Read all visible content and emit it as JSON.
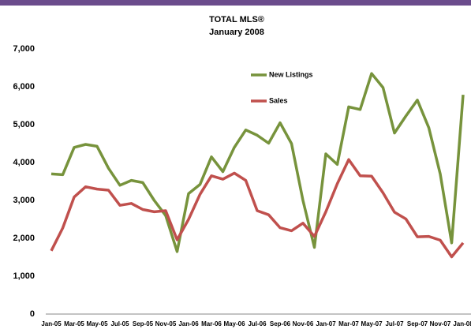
{
  "chart_data": {
    "type": "line",
    "title": "TOTAL MLS®",
    "subtitle": "January 2008",
    "categories": [
      "Jan-05",
      null,
      "Mar-05",
      null,
      "May-05",
      null,
      "Jul-05",
      null,
      "Sep-05",
      null,
      "Nov-05",
      null,
      "Jan-06",
      null,
      "Mar-06",
      null,
      "May-06",
      null,
      "Jul-06",
      null,
      "Sep-06",
      null,
      "Nov-06",
      null,
      "Jan-07",
      null,
      "Mar-07",
      null,
      "May-07",
      null,
      "Jul-07",
      null,
      "Sep-07",
      null,
      "Nov-07",
      null,
      "Jan-08"
    ],
    "series": [
      {
        "name": "New Listings",
        "color": "#77933c",
        "values": [
          3700,
          3680,
          4400,
          4480,
          4430,
          3850,
          3400,
          3530,
          3470,
          3000,
          2600,
          1650,
          3180,
          3420,
          4150,
          3760,
          4400,
          4860,
          4720,
          4510,
          5050,
          4500,
          3000,
          1760,
          4230,
          3950,
          5470,
          5400,
          6350,
          5980,
          4780,
          5230,
          5650,
          4920,
          3700,
          1880,
          5790
        ]
      },
      {
        "name": "Sales",
        "color": "#c0504d",
        "values": [
          1670,
          2270,
          3090,
          3360,
          3300,
          3270,
          2870,
          2920,
          2760,
          2700,
          2730,
          1960,
          2500,
          3160,
          3650,
          3560,
          3720,
          3530,
          2730,
          2620,
          2280,
          2200,
          2400,
          2050,
          2700,
          3440,
          4080,
          3650,
          3640,
          3200,
          2690,
          2510,
          2040,
          2050,
          1950,
          1510,
          1880
        ]
      }
    ],
    "ylim": [
      0,
      7000
    ],
    "yticks": [
      0,
      {
        "value": 1000,
        "label": "1,000"
      },
      {
        "value": 2000,
        "label": "2,000"
      },
      {
        "value": 3000,
        "label": "3,000"
      },
      {
        "value": 4000,
        "label": "4,000"
      },
      {
        "value": 5000,
        "label": "5,000"
      },
      {
        "value": 6000,
        "label": "6,000"
      },
      {
        "value": 7000,
        "label": "7,000"
      }
    ],
    "grid": false
  }
}
